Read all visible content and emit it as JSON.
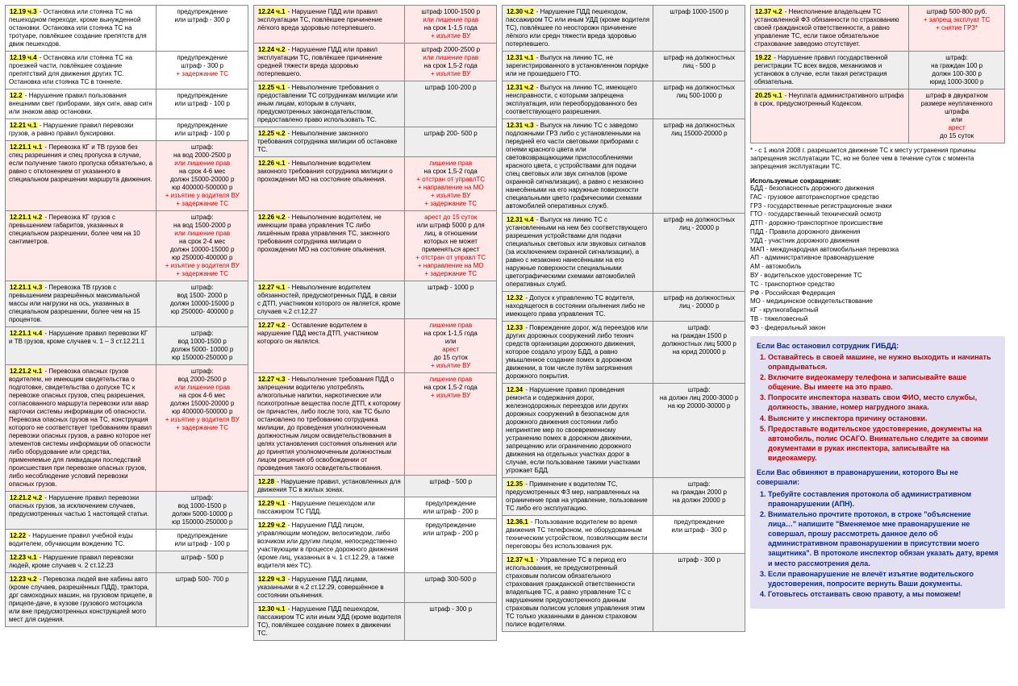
{
  "colors": {
    "highlight": "#ffff66",
    "pink": "#ffe8e8",
    "gray": "#eeeeee",
    "red": "#d00000",
    "panel_bg": "#e4e0f4",
    "panel_blue": "#0a2a8a",
    "panel_red": "#c00000",
    "border": "#888888"
  },
  "font": {
    "family": "Arial",
    "base_pt": 8,
    "panel_pt": 9
  },
  "col1": [
    {
      "g": "yellow",
      "code": "12.19 ч.3",
      "text": " - Остановка или стоянка ТС на пешеходном переходе, кроме вынужденной остановки. Остановка или стоянка ТС на тротуаре, повлёкшее создание препятств для движ пешеходов.",
      "pen": [
        "предупреждение",
        "или штраф - 300 р"
      ]
    },
    {
      "g": "yellow",
      "code": "12.19 ч.4",
      "text": " - Остановка или стоянка ТС на проезжей части, повлёкшее создание препятствий для движения других ТС. Остановка или стоянка ТС в тоннеле.",
      "pen": [
        "предупреждение",
        "штраф - 300 р",
        {
          "red": true,
          "t": "+ задержание ТС"
        }
      ]
    },
    {
      "g": "yellow",
      "code": "12.2",
      "text": " - Нарушение правил пользования внешними свет приборами, звук сигн, авар сигн или знаком авар остановки.",
      "pen": [
        "предупреждение",
        "или штраф - 100 р"
      ]
    },
    {
      "g": "yellow",
      "code": "12.21 ч.1",
      "text": " - Нарушение правил перевозки грузов, а равно правил буксировки.",
      "pen": [
        "предупреждение",
        "или штраф - 100 р"
      ]
    },
    {
      "g": "pink",
      "code": "12.21.1 ч.1",
      "text": " - Перевозка КГ и ТВ грузов без спец разрешения и спец пропуска в случае, если получение такого пропуска обязательно, а равно с отклонением от указанного в специальном разрешении маршрута движения.",
      "pen": [
        "штраф:",
        "на вод 2000-2500 р",
        {
          "red": true,
          "t": "или лишение прав"
        },
        "на срок 4-6 мес",
        "должн 15000-20000 р",
        "юр 400000-500000 р",
        {
          "red": true,
          "t": "+ изъятие у водителя ВУ"
        },
        {
          "red": true,
          "t": "+ задержание ТС"
        }
      ]
    },
    {
      "g": "pink",
      "code": "12.21.1 ч.2",
      "text": " - Перевозка КГ грузов с превышением габаритов, указанных в специальном разрешении, более чем на 10 сантиметров.",
      "pen": [
        "штраф:",
        "на вод 1500-2000 р",
        {
          "red": true,
          "t": "или лишение прав"
        },
        "на срок 2-4 мес",
        "должн 10000-15000 р",
        "юр 250000-400000 р",
        {
          "red": true,
          "t": "+ изъятие у водителя ВУ"
        },
        {
          "red": true,
          "t": "+ задержание ТС"
        }
      ]
    },
    {
      "g": "gray",
      "code": "12.21.1 ч.3",
      "text": " - Перевозка ТВ грузов с превышением разрешённых максимальной массы или нагрузки на ось, указанных в специальном разрешении, более чем на 15 процентов.",
      "pen": [
        "штраф:",
        "вод 1500- 2000 р",
        "должн 10000-15000 р",
        "юр 250000- 400000 р"
      ]
    },
    {
      "g": "gray",
      "code": "12.21.1 ч.4",
      "text": " - Нарушение правил перевозки КГ и ТВ грузов, кроме случаев ч. 1 – 3 ст.12.21.1",
      "pen": [
        "штраф:",
        "вод 1000-1500 р",
        "должн 5000- 10000 р",
        "юр 150000-250000 р"
      ]
    },
    {
      "g": "pink",
      "code": "12.21.2 ч.1",
      "text": " - Перевозка опасных грузов водителем, не имеющим свидетельства о подготовке, свидетельства о допуске ТС к перевозке опасных грузов, спец разрешения, согласованного маршрута перевозки или авар карточки системы информации об опасности. Перевозка опасных грузов на ТС, конструкция которого не соответствует требованиям правил перевозки опасных грузов, а равно которое нет элементов системы информации об опасности либо оборудование или средства, применяемые для ликвидации последствий происшествия при перевозке опасных грузов, либо несоблюдение условий перевозки опасных грузов.",
      "pen": [
        "штраф:",
        "вод 2000-2500 р",
        {
          "red": true,
          "t": "или лишение прав"
        },
        "на срок 4-6 мес",
        "должн  15000-20000 р",
        "юр 400000-500000 р",
        {
          "red": true,
          "t": "+ изъятие у водителя ВУ"
        },
        {
          "red": true,
          "t": "+ задержание ТС"
        }
      ]
    },
    {
      "g": "gray",
      "code": "12.21.2 ч.2",
      "text": " - Нарушение правил перевозки опасных грузов, за исключением случаев, предусмотренных частью 1 настоящей статьи.",
      "pen": [
        "штраф:",
        "вод 1000-1500 р",
        "должн 5000-10000 р",
        "юр 150000-250000 р"
      ]
    },
    {
      "g": "yellow",
      "code": "12.22",
      "text": " - Нарушение правил учебной езды водителем, обучающим вождению ТС.",
      "pen": [
        "предупреждение",
        "или штраф - 100 р"
      ]
    },
    {
      "g": "gray",
      "code": "12.23 ч.1",
      "text": " - Нарушение правил перевозки людей, кроме случаев ч. 2 ст.12.23",
      "pen": [
        "штраф - 500 р"
      ]
    },
    {
      "g": "gray",
      "code": "12.23 ч.2",
      "text": " - Перевозка людей вне кабины авто (кроме случаев, разрешённых ПДД), трактора, дрг самоходных машин, на грузовом прицепе, в прицепе-даче, в кузове грузового мотоцикла или вне предусмотренных конструкцией мото мест для сидения.",
      "pen": [
        "штраф 500- 700 р"
      ]
    }
  ],
  "col2": [
    {
      "g": "pink",
      "code": "12.24 ч.1",
      "text": " - Нарушение ПДД или правил эксплуатации ТС, повлёкшее причинение лёгкого вреда здоровью потерпевшего.",
      "pen": [
        "штраф 1000-1500 р",
        {
          "red": true,
          "t": "или лишение прав"
        },
        "на срок 1-1,5 года",
        {
          "red": true,
          "t": "+ изъятие ВУ"
        }
      ]
    },
    {
      "g": "pink",
      "code": "12.24 ч.2",
      "text": " - Нарушение ПДД или правил эксплуатации ТС, повлёкшее причинение средней тяжести вреда здоровью потерпевшего.",
      "pen": [
        "штраф 2000-2500 р",
        {
          "red": true,
          "t": "или лишение прав"
        },
        "на срок 1,5-2 года",
        {
          "red": true,
          "t": "+ изъятие ВУ"
        }
      ]
    },
    {
      "g": "gray",
      "code": "12.25 ч.1",
      "text": " - Невыполнение требования о предоставлении ТС сотрудникам милиции или иным лицам, которым в случаях, предусмотренных законодательством, предоставлено право использовать ТС.",
      "pen": [
        "штраф 100-200 р"
      ]
    },
    {
      "g": "gray",
      "code": "12.25 ч.2",
      "text": " - Невыполнение законного требования сотрудника милиции об остановке ТС.",
      "pen": [
        "штраф  200- 500 р"
      ]
    },
    {
      "g": "pink",
      "code": "12.26 ч.1",
      "text": " - Невыполнение водителем законного требования сотрудника милиции о прохождении МО на состояние опьянения.",
      "pen": [
        {
          "red": true,
          "t": "лишение прав"
        },
        "на срок 1,5-2 года",
        {
          "red": true,
          "t": "+ отстран от управлТС"
        },
        {
          "red": true,
          "t": "+ направление на МО"
        },
        {
          "red": true,
          "t": "+ изъятие ВУ"
        },
        {
          "red": true,
          "t": "+ задержание ТС"
        }
      ]
    },
    {
      "g": "pink",
      "code": "12.26 ч.2",
      "text": " - Невыполнение водителем, не имеющим права управления ТС либо лишённым права управления ТС, законного требования сотрудника милиции о прохождении МО на состояние опьянения.",
      "pen": [
        {
          "red": true,
          "t": "арест до 15 суток"
        },
        "или штраф 5000 р для",
        "лиц, в отношении",
        "которых не может",
        "применяться арест",
        {
          "red": true,
          "t": "+ отстран от управл ТС"
        },
        {
          "red": true,
          "t": "+ направление на МО"
        },
        {
          "red": true,
          "t": "+ задержание ТС"
        }
      ]
    },
    {
      "g": "gray",
      "code": "12.27 ч.1",
      "text": " - Невыполнение водителем обязанностей, предусмотренных ПДД, в связи с ДТП, участником которого он является, кроме случаев ч.2 ст.12.27",
      "pen": [
        "штраф - 1000 р"
      ]
    },
    {
      "g": "pink",
      "code": "12.27 ч.2",
      "text": " - Оставление водителем в нарушение ПДД места ДТП, участником которого он являлся.",
      "pen": [
        {
          "red": true,
          "t": "лишение прав"
        },
        "на срок 1-1,5 года",
        "или ",
        {
          "red": true,
          "t": "арест"
        },
        " до 15 суток",
        {
          "red": true,
          "t": "+ изъятие ВУ"
        }
      ]
    },
    {
      "g": "pink",
      "code": "12.27 ч.3",
      "text": " - Невыполнение требования ПДД о запрещении водителю употреблять алкогольные напитки, наркотические или психотропные вещества после ДТП, к которому он причастен, либо после того, как ТС было остановлено по требованию сотрудника милиции, до проведения уполномоченным должностным лицом освидетельствования в целях установления состояния опьянения или до принятия уполномоченным должностным лицом решения об освобождении от проведения такого освидетельствования.",
      "pen": [
        {
          "red": true,
          "t": "лишение прав"
        },
        "на срок 1,5-2 года",
        {
          "red": true,
          "t": "+ изъятие ВУ"
        }
      ]
    },
    {
      "g": "gray",
      "code": "12.28",
      "text": " - Нарушение правил, установленных для движения ТС в жилых зонах.",
      "pen": [
        "штраф - 500 р"
      ]
    },
    {
      "g": "yellow",
      "code": "12.29 ч.1",
      "text": " - Нарушение пешеходом или пассажиром ТС ПДД.",
      "pen": [
        "предупреждение",
        "или штраф - 200 р"
      ]
    },
    {
      "g": "yellow",
      "code": "12.29 ч.2",
      "text": " - Нарушение ПДД лицом, управляющим мопедом, велосипедом, либо возчиком или другим лицом, непосредственно участвующим в процессе дорожного движения (кроме лиц, указанных в ч. 1 ст.12.29, а также водителя мех ТС).",
      "pen": [
        "предупреждение",
        "или штраф - 200 р"
      ]
    },
    {
      "g": "gray",
      "code": "12.29 ч.3",
      "text": " - Нарушение ПДД лицами, указанными в ч.2 ст.12.29, совершённое в состоянии опьянения.",
      "pen": [
        "штраф 300-500 р"
      ]
    },
    {
      "g": "gray",
      "code": "12.30 ч.1",
      "text": " - Нарушение ПДД пешеходом, пассажиром ТС или иным УДД (кроме водителя ТС), повлёкшее создание помех в движении ТС.",
      "pen": [
        "штраф - 300 р"
      ]
    }
  ],
  "col3": [
    {
      "g": "gray",
      "code": "12.30 ч.2",
      "text": " - Нарушение ПДД пешеходом, пассажиром ТС или иным УДД (кроме водителя ТС), повлёкшее по неосторожн причинение лёгкого или средн тяжести вреда здоровью потерпевшего.",
      "pen": [
        "штраф 1000-1500 р"
      ]
    },
    {
      "g": "gray",
      "code": "12.31 ч.1",
      "text": " - Выпуск на линию ТС, не зарегистрированного в установленном порядке или не прошедшего ГТО.",
      "pen": [
        "штраф на должностных",
        "лиц - 500 р"
      ]
    },
    {
      "g": "gray",
      "code": "12.31 ч.2",
      "text": " - Выпуск на линию ТС, имеющего неисправности, с которыми запрещена эксплуатация, или переоборудованного без соответствующего разрешения.",
      "pen": [
        "штраф на должностных",
        "лиц 500-1000 р"
      ]
    },
    {
      "g": "gray",
      "code": "12.31 ч.3",
      "text": " - Выпуск на линию ТС с заведомо подложными ГРЗ либо с установленными на передней его части световыми приборами с огнями красного цвета или световозвращающими приспособлениями красного цвета, с устройствами для подачи спец световых или звук сигналов (кроме охранной сигнализации), а равно с незаконно нанесёнными на его наружные поверхности специальными цвето графическими схемами автомобилей оперативных служб.",
      "pen": [
        "штраф на должностных",
        "лиц 15000-20000 р"
      ]
    },
    {
      "g": "gray",
      "code": "12.31 ч.4",
      "text": " - Выпуск на линию ТС с установленными на нем без соответствующего разрешения устройствами для подачи специальных световых или звуковых сигналов (за исключением охранной сигнализации), а равно с незаконно нанесёнными на его наружные поверхности специальными цветографическими схемами автомобилей оперативных служб.",
      "pen": [
        "штраф на должностных",
        "лиц - 20000 р"
      ]
    },
    {
      "g": "gray",
      "code": "12.32",
      "text": " - Допуск к управлению ТС водителя, находящегося в состоянии опьянения либо не имеющего права управления ТС.",
      "pen": [
        "штраф на должностных",
        "лиц - 20000 р"
      ]
    },
    {
      "g": "gray",
      "code": "12.33",
      "text": " - Повреждение дорог, ж/д переездов или других дорожных сооружений либо технич  средств организации дорожного движения, которое создало угрозу БДД, а равно умышленное создание помех в дорожном движении, в том числе путём загрязнения дорожного покрытия.",
      "pen": [
        "штраф:",
        "на граждан 1500 р",
        "должностных лиц 5000 р",
        "на юрид 200000 р"
      ]
    },
    {
      "g": "gray",
      "code": "12.34",
      "text": " - Нарушение правил проведения ремонта и содержания дорог, железнодорожных переездов или других дорожных сооружений в безопасном для дорожного движения состоянии либо непринятие мер по своевременному устранению помех в дорожном движении, запрещению или ограничению дорожного движения на отдельных участках дорог в случае, если пользование такими участками угрожает БДД.",
      "pen": [
        "штраф:",
        " на должн лиц 2000-3000 р",
        "на юр 20000-30000 р"
      ]
    },
    {
      "g": "gray",
      "code": "12.35",
      "text": " - Применение к водителям ТС, предусмотренных ФЗ мер, направленных на ограничение прав на управление, пользование ТС либо его эксплуатацию.",
      "pen": [
        "штраф:",
        "на граждан 2000 р",
        "на должн 20000 р"
      ]
    },
    {
      "g": "yellow",
      "code": "12.36.1",
      "text": " - Пользование водителем во время движения ТС телефоном, не оборудованным техническим устройством, позволяющим вести переговоры без использования рук.",
      "pen": [
        "предупреждение",
        "или штраф - 300 р"
      ]
    },
    {
      "g": "gray",
      "code": "12.37 ч.1",
      "text": " - Управление ТС в период его использования, не предусмотренный страховым полисом обязательного страхования гражданской ответственности владельцев ТС, а равно управление ТС с нарушением предусмотренного данным страховым полисом условия управления этим ТС только указанными в данном страховом полисе водителями.",
      "pen": [
        "штраф - 300 р"
      ]
    }
  ],
  "col4_rules": [
    {
      "g": "pink",
      "code": "12.37 ч.2",
      "text": " - Неисполнение владельцем ТС установленной ФЗ обязанности по страхованию своей гражданской ответственности, а равно управление ТС, если такое обязательное страхование заведомо отсутствует.",
      "pen": [
        "штраф  500-800 руб.",
        {
          "red": true,
          "t": "+ запрещ эксплуат ТС"
        },
        {
          "red": true,
          "t": "+ снятие ГРЗ*"
        }
      ]
    },
    {
      "g": "gray",
      "code": "19.22",
      "text": " - Нарушение правил государственной регистрации ТС всех видов, механизмов и установок в случае, если такая регистрация обязательна.",
      "pen": [
        "штраф:",
        "на граждан 100 р",
        "должн 100-300 р",
        "юрид 1000-3000 р"
      ]
    },
    {
      "g": "pink",
      "code": "20.25 ч.1",
      "text": " - Неуплата административного штрафа в срок, предусмотренный Кодексом.",
      "pen": [
        "штраф в двукратном",
        "размере неуплаченного",
        "штрафа",
        "или ",
        {
          "red": true,
          "t": "арест"
        },
        " до 15 суток"
      ]
    }
  ],
  "footnote": "* - с 1 июля 2008 г. разрешается движение ТС к месту устранения причины запрещения эксплуатации ТС, но не более чем в течение суток с момента запрещения эксплуатации ТС.",
  "abbr_title": "Используемые сокращения:",
  "abbr": [
    "БДД - безопасность дорожного движения",
    "ГАС - грузовое автотранспортное средство",
    "ГРЗ - государственные регистрационные знаки",
    "ГТО - государственный технический осмотр",
    "ДТП - дорожно-транспортное происшествие",
    "ПДД - Правила дорожного движения",
    "УДД - участник дорожного движения",
    "МАП - международная автомобильная перевозка",
    "АП - административное правонарушение",
    "АМ - автомобиль",
    "ВУ - водительское удостоверение ТС",
    "ТС - транспортное средство",
    "РФ - Российская Федерация",
    "МО - медицинское освидетельствование",
    "КГ - крупногабаритный",
    "ТВ - тяжеловесный",
    "ФЗ - федеральный закон"
  ],
  "panel": {
    "h1": "Если Вас остановил сотрудник ГИБДД:",
    "list1": [
      "Оставайтесь в своей машине, не нужно выходить и начинать оправдываться.",
      "Включите видеокамеру телефона и записывайте ваше общение. Вы имеете на это право.",
      "Попросите инспектора назвать свои ФИО, место службы, должность, звание, номер нагрудного знака.",
      "Выясните у инспектора причину остановки.",
      "Предоставьте водительское удостоверение, документы на автомобиль, полис ОСАГО. Внимательно следите за своими документами в руках инспектора, записывайте на видеокамеру."
    ],
    "h2": "Если Вас обвиняют в правонарушении, которого Вы не совершали:",
    "list2": [
      "Требуйте составления протокола об административном правонарушении (АПН).",
      "Внимательно прочтите протокол, в строке \"объяснение лица…\" напишите \"Вменяемое мне правонарушение не совершал, прошу рассмотреть данное дело об административном правонарушении в присутствии моего защитника\". В протоколе инспектор обязан указать дату, время и место рассмотрения дела.",
      "Если правонарушение не влечёт изъятие водительского удостоверения, попросите вернуть Ваши документы.",
      "Готовьтесь отстаивать свою правоту, а мы поможем!"
    ]
  }
}
